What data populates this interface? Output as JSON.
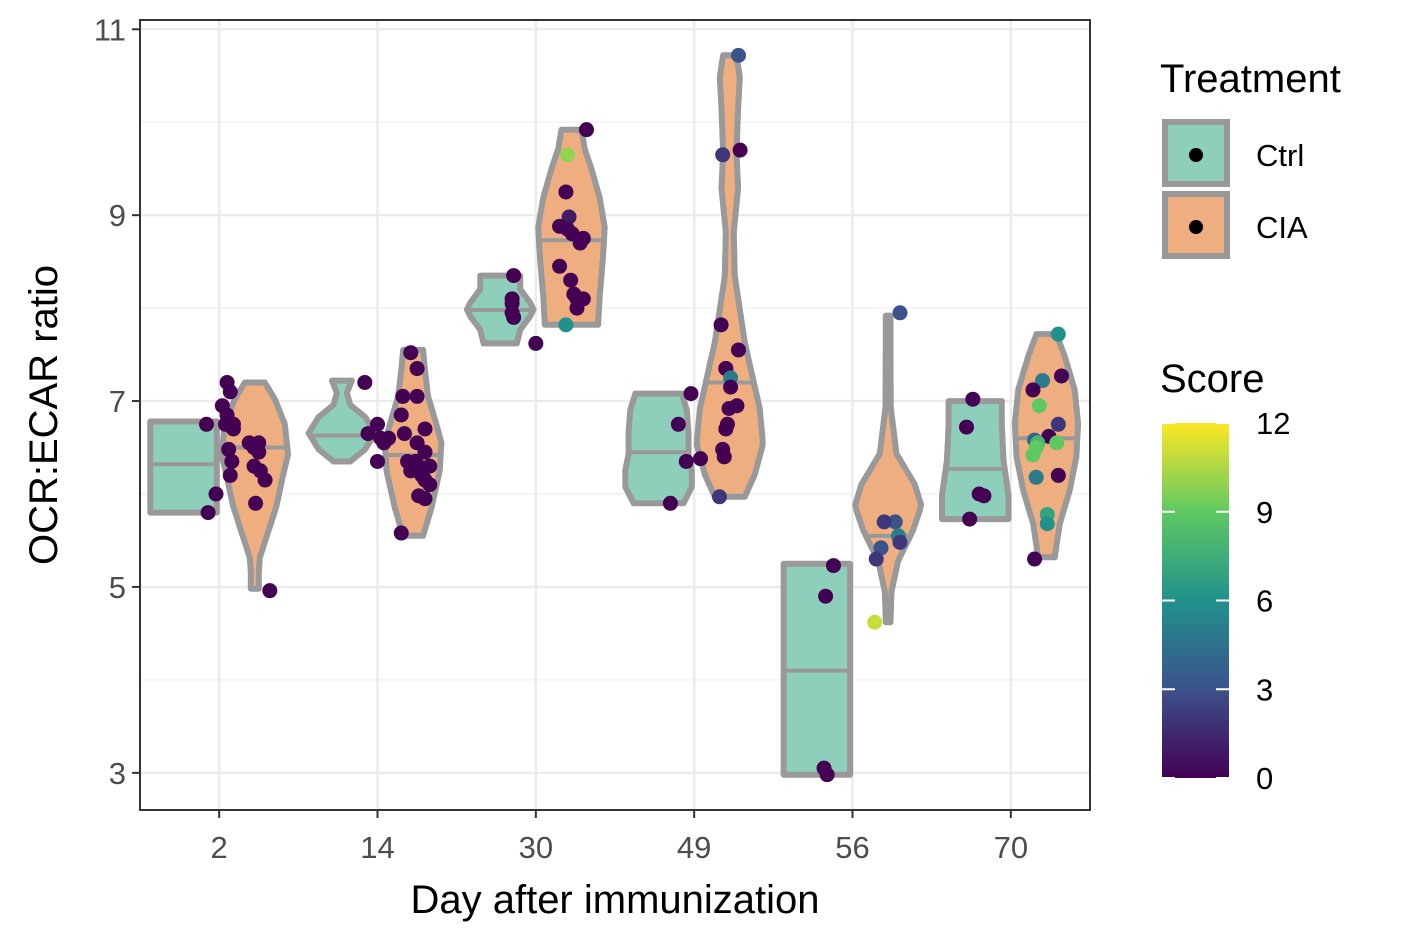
{
  "chart_data": {
    "type": "violin",
    "xlabel": "Day after immunization",
    "ylabel": "OCR:ECAR ratio",
    "categories": [
      "2",
      "14",
      "30",
      "49",
      "56",
      "70"
    ],
    "y_ticks": [
      3,
      5,
      7,
      9,
      11
    ],
    "ylim": [
      2.6,
      11.1
    ],
    "grid": true,
    "legend_placement": "right",
    "treatment_legend": {
      "title": "Treatment",
      "entries": [
        {
          "label": "Ctrl",
          "color": "#8ecfbb"
        },
        {
          "label": "CIA",
          "color": "#eeae80"
        }
      ]
    },
    "score_legend": {
      "title": "Score",
      "ticks": [
        "12",
        "9",
        "6",
        "3",
        "0"
      ],
      "min": 0,
      "max": 12,
      "colors": [
        "#440154",
        "#3b528b",
        "#21918c",
        "#5ec962",
        "#fde725"
      ]
    },
    "series": [
      {
        "name": "Ctrl",
        "day": "2",
        "min": 5.8,
        "median": 6.32,
        "max": 6.78,
        "profile": [
          [
            0,
            1
          ],
          [
            0.2,
            1
          ],
          [
            0.5,
            1
          ],
          [
            0.8,
            1
          ],
          [
            1,
            1
          ]
        ],
        "points": [
          [
            -0.08,
            6.75,
            0
          ],
          [
            0.09,
            6.7,
            0
          ],
          [
            0.06,
            6.48,
            0
          ],
          [
            0.08,
            6.35,
            0
          ],
          [
            -0.02,
            6.0,
            0
          ],
          [
            -0.07,
            5.8,
            0
          ]
        ]
      },
      {
        "name": "CIA",
        "day": "2",
        "min": 4.98,
        "median": 6.5,
        "max": 7.2,
        "profile": [
          [
            0,
            0.12
          ],
          [
            0.08,
            0.12
          ],
          [
            0.15,
            0.15
          ],
          [
            0.25,
            0.35
          ],
          [
            0.4,
            0.65
          ],
          [
            0.55,
            0.85
          ],
          [
            0.65,
            1
          ],
          [
            0.8,
            0.9
          ],
          [
            0.92,
            0.6
          ],
          [
            1,
            0.3
          ]
        ],
        "points": [
          [
            0.05,
            7.2,
            0
          ],
          [
            0.07,
            7.1,
            0
          ],
          [
            0.02,
            6.95,
            0
          ],
          [
            0.05,
            6.85,
            0
          ],
          [
            0.04,
            6.75,
            0
          ],
          [
            0.09,
            6.75,
            0
          ],
          [
            0.19,
            6.55,
            0
          ],
          [
            0.25,
            6.55,
            0
          ],
          [
            0.22,
            6.5,
            0
          ],
          [
            0.25,
            6.45,
            0
          ],
          [
            0.22,
            6.3,
            0
          ],
          [
            0.26,
            6.25,
            0
          ],
          [
            0.07,
            6.2,
            0
          ],
          [
            0.29,
            6.15,
            0
          ],
          [
            0.23,
            5.9,
            0
          ],
          [
            0.32,
            4.96,
            0
          ]
        ]
      },
      {
        "name": "Ctrl",
        "day": "14",
        "min": 6.35,
        "median": 6.63,
        "max": 7.22,
        "profile": [
          [
            0,
            0.25
          ],
          [
            0.15,
            0.7
          ],
          [
            0.35,
            1
          ],
          [
            0.55,
            0.7
          ],
          [
            0.7,
            0.25
          ],
          [
            0.85,
            0.15
          ],
          [
            1,
            0.3
          ]
        ],
        "points": [
          [
            -0.08,
            7.2,
            0
          ],
          [
            -0.06,
            6.65,
            0
          ],
          [
            0.0,
            6.75,
            0
          ],
          [
            0.02,
            6.6,
            0
          ],
          [
            0.04,
            6.55,
            0
          ],
          [
            0.07,
            6.6,
            0
          ],
          [
            0.0,
            6.35,
            0
          ]
        ]
      },
      {
        "name": "CIA",
        "day": "14",
        "min": 5.55,
        "median": 6.42,
        "max": 7.55,
        "profile": [
          [
            0,
            0.3
          ],
          [
            0.15,
            0.55
          ],
          [
            0.35,
            0.8
          ],
          [
            0.5,
            0.85
          ],
          [
            0.6,
            0.7
          ],
          [
            0.75,
            0.45
          ],
          [
            0.9,
            0.35
          ],
          [
            1,
            0.3
          ]
        ],
        "points": [
          [
            0.21,
            7.52,
            0
          ],
          [
            0.25,
            7.35,
            0
          ],
          [
            0.16,
            7.05,
            0
          ],
          [
            0.25,
            7.05,
            0
          ],
          [
            0.15,
            6.85,
            0
          ],
          [
            0.3,
            6.7,
            0
          ],
          [
            0.17,
            6.65,
            0
          ],
          [
            0.25,
            6.55,
            0
          ],
          [
            0.3,
            6.45,
            0
          ],
          [
            0.19,
            6.35,
            0
          ],
          [
            0.24,
            6.35,
            0
          ],
          [
            0.26,
            6.3,
            0
          ],
          [
            0.33,
            6.3,
            0
          ],
          [
            0.21,
            6.25,
            0
          ],
          [
            0.28,
            6.2,
            0
          ],
          [
            0.3,
            6.15,
            0
          ],
          [
            0.33,
            6.1,
            0
          ],
          [
            0.26,
            5.98,
            0
          ],
          [
            0.3,
            5.95,
            0
          ],
          [
            0.15,
            5.58,
            0
          ]
        ]
      },
      {
        "name": "Ctrl",
        "day": "30",
        "min": 7.62,
        "median": 7.98,
        "max": 8.35,
        "profile": [
          [
            0,
            0.5
          ],
          [
            0.2,
            0.6
          ],
          [
            0.4,
            0.9
          ],
          [
            0.5,
            1
          ],
          [
            0.6,
            0.9
          ],
          [
            0.8,
            0.6
          ],
          [
            1,
            0.6
          ]
        ],
        "points": [
          [
            -0.14,
            8.35,
            0
          ],
          [
            -0.15,
            8.1,
            0
          ],
          [
            -0.15,
            8.05,
            0
          ],
          [
            -0.15,
            7.95,
            0
          ],
          [
            -0.14,
            7.9,
            0
          ],
          [
            0.0,
            7.62,
            0
          ]
        ]
      },
      {
        "name": "CIA",
        "day": "30",
        "min": 7.82,
        "median": 8.73,
        "max": 9.92,
        "profile": [
          [
            0,
            0.8
          ],
          [
            0.15,
            0.85
          ],
          [
            0.35,
            0.95
          ],
          [
            0.5,
            1
          ],
          [
            0.65,
            0.85
          ],
          [
            0.8,
            0.6
          ],
          [
            0.9,
            0.4
          ],
          [
            1,
            0.3
          ]
        ],
        "points": [
          [
            0.32,
            9.92,
            0
          ],
          [
            0.2,
            9.65,
            10
          ],
          [
            0.19,
            9.25,
            0
          ],
          [
            0.21,
            8.98,
            1
          ],
          [
            0.15,
            8.88,
            0
          ],
          [
            0.2,
            8.85,
            0
          ],
          [
            0.23,
            8.8,
            0
          ],
          [
            0.3,
            8.75,
            0
          ],
          [
            0.28,
            8.7,
            0
          ],
          [
            0.15,
            8.45,
            0
          ],
          [
            0.22,
            8.3,
            0
          ],
          [
            0.24,
            8.15,
            0
          ],
          [
            0.26,
            8.1,
            0
          ],
          [
            0.3,
            8.1,
            0
          ],
          [
            0.26,
            8.0,
            0
          ],
          [
            0.19,
            7.82,
            6
          ]
        ]
      },
      {
        "name": "Ctrl",
        "day": "49",
        "min": 5.9,
        "median": 6.45,
        "max": 7.08,
        "profile": [
          [
            0,
            0.75
          ],
          [
            0.15,
            1
          ],
          [
            0.3,
            1
          ],
          [
            0.45,
            0.9
          ],
          [
            0.65,
            0.9
          ],
          [
            0.85,
            0.85
          ],
          [
            1,
            0.7
          ]
        ],
        "points": [
          [
            -0.02,
            7.08,
            0
          ],
          [
            -0.1,
            6.75,
            0
          ],
          [
            -0.05,
            6.35,
            0
          ],
          [
            0.04,
            6.38,
            0
          ],
          [
            -0.15,
            5.9,
            0
          ]
        ]
      },
      {
        "name": "CIA",
        "day": "49",
        "min": 5.97,
        "median": 7.2,
        "max": 10.72,
        "profile": [
          [
            0,
            0.45
          ],
          [
            0.05,
            0.75
          ],
          [
            0.12,
            1
          ],
          [
            0.2,
            0.9
          ],
          [
            0.35,
            0.45
          ],
          [
            0.5,
            0.15
          ],
          [
            0.6,
            0.12
          ],
          [
            0.7,
            0.25
          ],
          [
            0.78,
            0.2
          ],
          [
            0.88,
            0.25
          ],
          [
            0.95,
            0.3
          ],
          [
            1,
            0.2
          ]
        ],
        "points": [
          [
            0.28,
            10.72,
            3
          ],
          [
            0.18,
            9.65,
            2
          ],
          [
            0.29,
            9.7,
            0
          ],
          [
            0.17,
            7.82,
            0
          ],
          [
            0.28,
            7.55,
            0
          ],
          [
            0.2,
            7.35,
            0
          ],
          [
            0.2,
            7.35,
            0
          ],
          [
            0.23,
            7.25,
            5
          ],
          [
            0.23,
            7.15,
            0
          ],
          [
            0.27,
            6.95,
            0
          ],
          [
            0.22,
            6.92,
            0
          ],
          [
            0.21,
            6.75,
            0
          ],
          [
            0.2,
            6.7,
            0
          ],
          [
            0.18,
            6.48,
            0
          ],
          [
            0.19,
            6.4,
            0
          ],
          [
            0.16,
            5.97,
            2
          ]
        ]
      },
      {
        "name": "Ctrl",
        "day": "56",
        "min": 2.98,
        "median": 4.1,
        "max": 5.25,
        "profile": [
          [
            0,
            1
          ],
          [
            0.5,
            1
          ],
          [
            1,
            1
          ]
        ],
        "points": [
          [
            -0.17,
            4.9,
            0
          ],
          [
            -0.12,
            5.23,
            0
          ],
          [
            -0.18,
            3.05,
            0
          ],
          [
            -0.16,
            2.98,
            0
          ]
        ]
      },
      {
        "name": "CIA",
        "day": "56",
        "min": 4.62,
        "median": 5.55,
        "max": 7.92,
        "profile": [
          [
            0,
            0.07
          ],
          [
            0.1,
            0.1
          ],
          [
            0.2,
            0.3
          ],
          [
            0.3,
            0.75
          ],
          [
            0.38,
            1
          ],
          [
            0.45,
            0.8
          ],
          [
            0.55,
            0.25
          ],
          [
            0.7,
            0.08
          ],
          [
            0.9,
            0.07
          ],
          [
            1,
            0.07
          ]
        ],
        "points": [
          [
            0.3,
            7.95,
            3
          ],
          [
            0.27,
            5.7,
            3
          ],
          [
            0.2,
            5.7,
            2
          ],
          [
            0.29,
            5.55,
            5
          ],
          [
            0.3,
            5.48,
            2
          ],
          [
            0.18,
            5.42,
            3
          ],
          [
            0.15,
            5.3,
            2
          ],
          [
            0.14,
            4.62,
            11
          ]
        ]
      },
      {
        "name": "Ctrl",
        "day": "70",
        "min": 5.73,
        "median": 6.27,
        "max": 7.0,
        "profile": [
          [
            0,
            1
          ],
          [
            0.2,
            1
          ],
          [
            0.5,
            0.85
          ],
          [
            0.8,
            0.8
          ],
          [
            1,
            0.8
          ]
        ],
        "points": [
          [
            -0.24,
            7.02,
            0
          ],
          [
            -0.28,
            6.72,
            0
          ],
          [
            -0.2,
            6.0,
            0
          ],
          [
            -0.17,
            5.98,
            0
          ],
          [
            -0.26,
            5.73,
            0
          ]
        ]
      },
      {
        "name": "CIA",
        "day": "70",
        "min": 5.32,
        "median": 6.6,
        "max": 7.72,
        "profile": [
          [
            0,
            0.25
          ],
          [
            0.15,
            0.4
          ],
          [
            0.3,
            0.7
          ],
          [
            0.45,
            0.9
          ],
          [
            0.6,
            0.95
          ],
          [
            0.75,
            0.85
          ],
          [
            0.9,
            0.55
          ],
          [
            1,
            0.3
          ]
        ],
        "points": [
          [
            0.3,
            7.72,
            6
          ],
          [
            0.32,
            7.27,
            0
          ],
          [
            0.2,
            7.22,
            5
          ],
          [
            0.14,
            7.12,
            0
          ],
          [
            0.18,
            6.95,
            9
          ],
          [
            0.3,
            6.75,
            2
          ],
          [
            0.24,
            6.62,
            0
          ],
          [
            0.15,
            6.58,
            4
          ],
          [
            0.17,
            6.55,
            8
          ],
          [
            0.29,
            6.55,
            9
          ],
          [
            0.16,
            6.5,
            9
          ],
          [
            0.14,
            6.42,
            9
          ],
          [
            0.3,
            6.2,
            0
          ],
          [
            0.16,
            6.18,
            5
          ],
          [
            0.23,
            5.78,
            7
          ],
          [
            0.23,
            5.68,
            6
          ],
          [
            0.15,
            5.3,
            0
          ]
        ]
      }
    ]
  }
}
